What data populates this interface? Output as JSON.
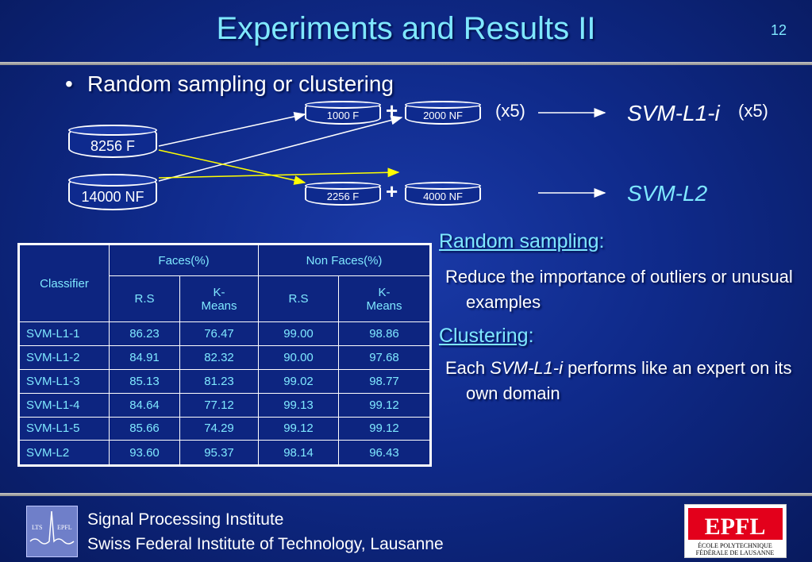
{
  "slide": {
    "title": "Experiments and Results II",
    "page_number": "12"
  },
  "bullet": {
    "symbol": "•",
    "text": "Random sampling or clustering"
  },
  "diagram": {
    "source_faces": "8256 F",
    "source_nonfaces": "14000 NF",
    "subset_faces": "1000 F",
    "subset_nonfaces": "2000 NF",
    "cluster_faces": "2256 F",
    "cluster_nonfaces": "4000 NF",
    "plus": "+",
    "times_label": "(x5)",
    "level1_classifier": "SVM-L1-i",
    "level1_times": "(x5)",
    "level2_classifier": "SVM-L2"
  },
  "table": {
    "classifier_header": "Classifier",
    "faces_header": "Faces(%)",
    "nonfaces_header": "Non Faces(%)",
    "rs_label": "R.S",
    "kmeans_label_line1": "K-",
    "kmeans_label_line2": "Means",
    "rows": [
      {
        "name": "SVM-L1-1",
        "faces_rs": "86.23",
        "faces_km": "76.47",
        "nf_rs": "99.00",
        "nf_km": "98.86"
      },
      {
        "name": "SVM-L1-2",
        "faces_rs": "84.91",
        "faces_km": "82.32",
        "nf_rs": "90.00",
        "nf_km": "97.68"
      },
      {
        "name": "SVM-L1-3",
        "faces_rs": "85.13",
        "faces_km": "81.23",
        "nf_rs": "99.02",
        "nf_km": "98.77"
      },
      {
        "name": "SVM-L1-4",
        "faces_rs": "84.64",
        "faces_km": "77.12",
        "nf_rs": "99.13",
        "nf_km": "99.12"
      },
      {
        "name": "SVM-L1-5",
        "faces_rs": "85.66",
        "faces_km": "74.29",
        "nf_rs": "99.12",
        "nf_km": "99.12"
      },
      {
        "name": "SVM-L2",
        "faces_rs": "93.60",
        "faces_km": "95.37",
        "nf_rs": "98.14",
        "nf_km": "96.43"
      }
    ]
  },
  "notes": {
    "random_heading": "Random sampling",
    "random_text": "Reduce the importance of outliers or unusual examples",
    "clustering_heading": "Clustering",
    "clustering_text_before": "Each ",
    "clustering_text_italic": "SVM-L1-i",
    "clustering_text_after": " performs like an expert on its own domain",
    "colon": ":"
  },
  "footer": {
    "line1": "Signal Processing Institute",
    "line2": "Swiss Federal Institute of Technology, Lausanne",
    "lts_logo_text_left": "LTS",
    "lts_logo_text_right": "EPFL",
    "epfl_logo_text": "EPFL",
    "epfl_sub_line1": "ÉCOLE POLYTECHNIQUE",
    "epfl_sub_line2": "FÉDÉRALE DE LAUSANNE"
  },
  "colors": {
    "accent_cyan": "#7fe8ff",
    "background": "#0f2a8a",
    "yellow_arrow": "#ffff00"
  }
}
